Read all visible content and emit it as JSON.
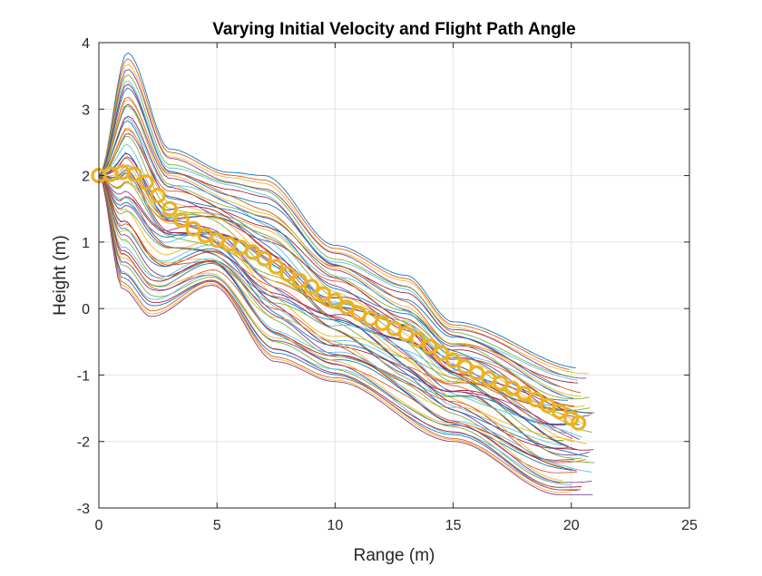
{
  "chart_data": {
    "type": "line",
    "title": "Varying Initial Velocity and Flight Path Angle",
    "xlabel": "Range (m)",
    "ylabel": "Height (m)",
    "xlim": [
      0,
      25
    ],
    "ylim": [
      -3,
      4
    ],
    "xticks": [
      0,
      5,
      10,
      15,
      20,
      25
    ],
    "yticks": [
      -3,
      -2,
      -1,
      0,
      1,
      2,
      3,
      4
    ],
    "xtick_labels": [
      "0",
      "5",
      "10",
      "15",
      "20",
      "25"
    ],
    "ytick_labels": [
      "-3",
      "-2",
      "-1",
      "0",
      "1",
      "2",
      "3",
      "4"
    ],
    "grid": true,
    "box": true,
    "trajectory_family": {
      "count": 60,
      "start": [
        0,
        2
      ],
      "end_x_range": [
        19.5,
        21
      ],
      "end_y_range": [
        -2.8,
        -0.7
      ],
      "upper_envelope": [
        [
          0,
          2
        ],
        [
          1.2,
          3.85
        ],
        [
          3,
          2.4
        ],
        [
          5.5,
          2.05
        ],
        [
          7,
          2.0
        ],
        [
          10,
          0.95
        ],
        [
          13,
          0.5
        ],
        [
          15,
          -0.2
        ],
        [
          20.5,
          -0.9
        ]
      ],
      "lower_envelope": [
        [
          0,
          2
        ],
        [
          1,
          0.3
        ],
        [
          2.2,
          -0.12
        ],
        [
          4.8,
          0.35
        ],
        [
          7.5,
          -0.8
        ],
        [
          10,
          -1.1
        ],
        [
          15,
          -2.0
        ],
        [
          19.5,
          -2.8
        ]
      ],
      "colors": [
        "#0072BD",
        "#D95319",
        "#EDB120",
        "#7E2F8E",
        "#77AC30",
        "#4DBEEE",
        "#A2142F"
      ]
    },
    "series": [
      {
        "marker": "o",
        "color": "#EDB120",
        "x": [
          0,
          0.5,
          1.0,
          1.5,
          2.0,
          2.5,
          3.0,
          3.5,
          4.0,
          4.5,
          5.0,
          5.5,
          6.0,
          6.5,
          7.0,
          7.5,
          8.0,
          8.5,
          9.0,
          9.5,
          10.0,
          10.5,
          11.0,
          11.5,
          12.0,
          12.5,
          13.0,
          13.5,
          14.0,
          14.5,
          15.0,
          15.5,
          16.0,
          16.5,
          17.0,
          17.5,
          18.0,
          18.5,
          19.0,
          19.5,
          20.0,
          20.3
        ],
        "y": [
          2.0,
          2.02,
          2.05,
          2.02,
          1.9,
          1.7,
          1.5,
          1.33,
          1.2,
          1.1,
          1.03,
          0.97,
          0.92,
          0.85,
          0.75,
          0.63,
          0.52,
          0.42,
          0.33,
          0.22,
          0.12,
          0.02,
          -0.07,
          -0.15,
          -0.22,
          -0.3,
          -0.38,
          -0.47,
          -0.57,
          -0.67,
          -0.78,
          -0.88,
          -0.97,
          -1.05,
          -1.12,
          -1.2,
          -1.28,
          -1.37,
          -1.46,
          -1.55,
          -1.65,
          -1.72
        ]
      }
    ]
  }
}
